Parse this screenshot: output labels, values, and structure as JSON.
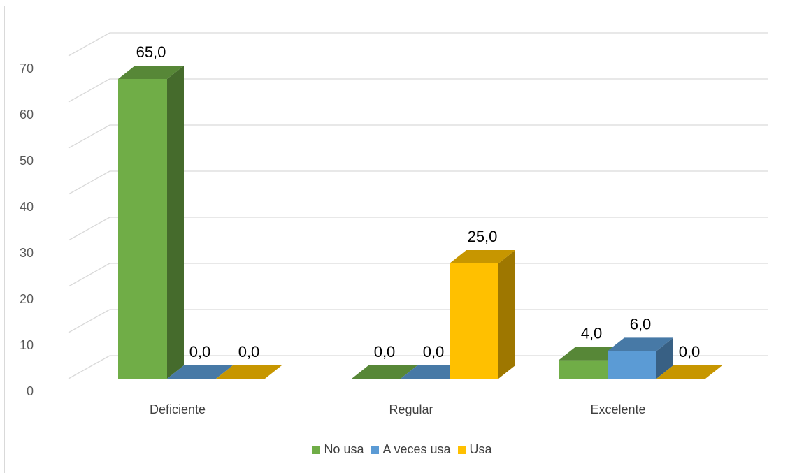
{
  "chart_data": {
    "type": "bar",
    "style": "3d-clustered-column",
    "categories": [
      "Deficiente",
      "Regular",
      "Excelente"
    ],
    "series": [
      {
        "name": "No usa",
        "values": [
          65.0,
          0.0,
          4.0
        ],
        "color": "#70ad47"
      },
      {
        "name": "A veces usa",
        "values": [
          0.0,
          0.0,
          6.0
        ],
        "color": "#5b9bd5"
      },
      {
        "name": "Usa",
        "values": [
          0.0,
          25.0,
          0.0
        ],
        "color": "#ffc000"
      }
    ],
    "data_labels": [
      [
        "65,0",
        "0,0",
        "4,0"
      ],
      [
        "0,0",
        "0,0",
        "6,0"
      ],
      [
        "0,0",
        "25,0",
        "0,0"
      ]
    ],
    "ylim": [
      0,
      70
    ],
    "yticks": [
      "0",
      "10",
      "20",
      "30",
      "40",
      "50",
      "60",
      "70"
    ],
    "grid": true,
    "legend": "bottom"
  }
}
